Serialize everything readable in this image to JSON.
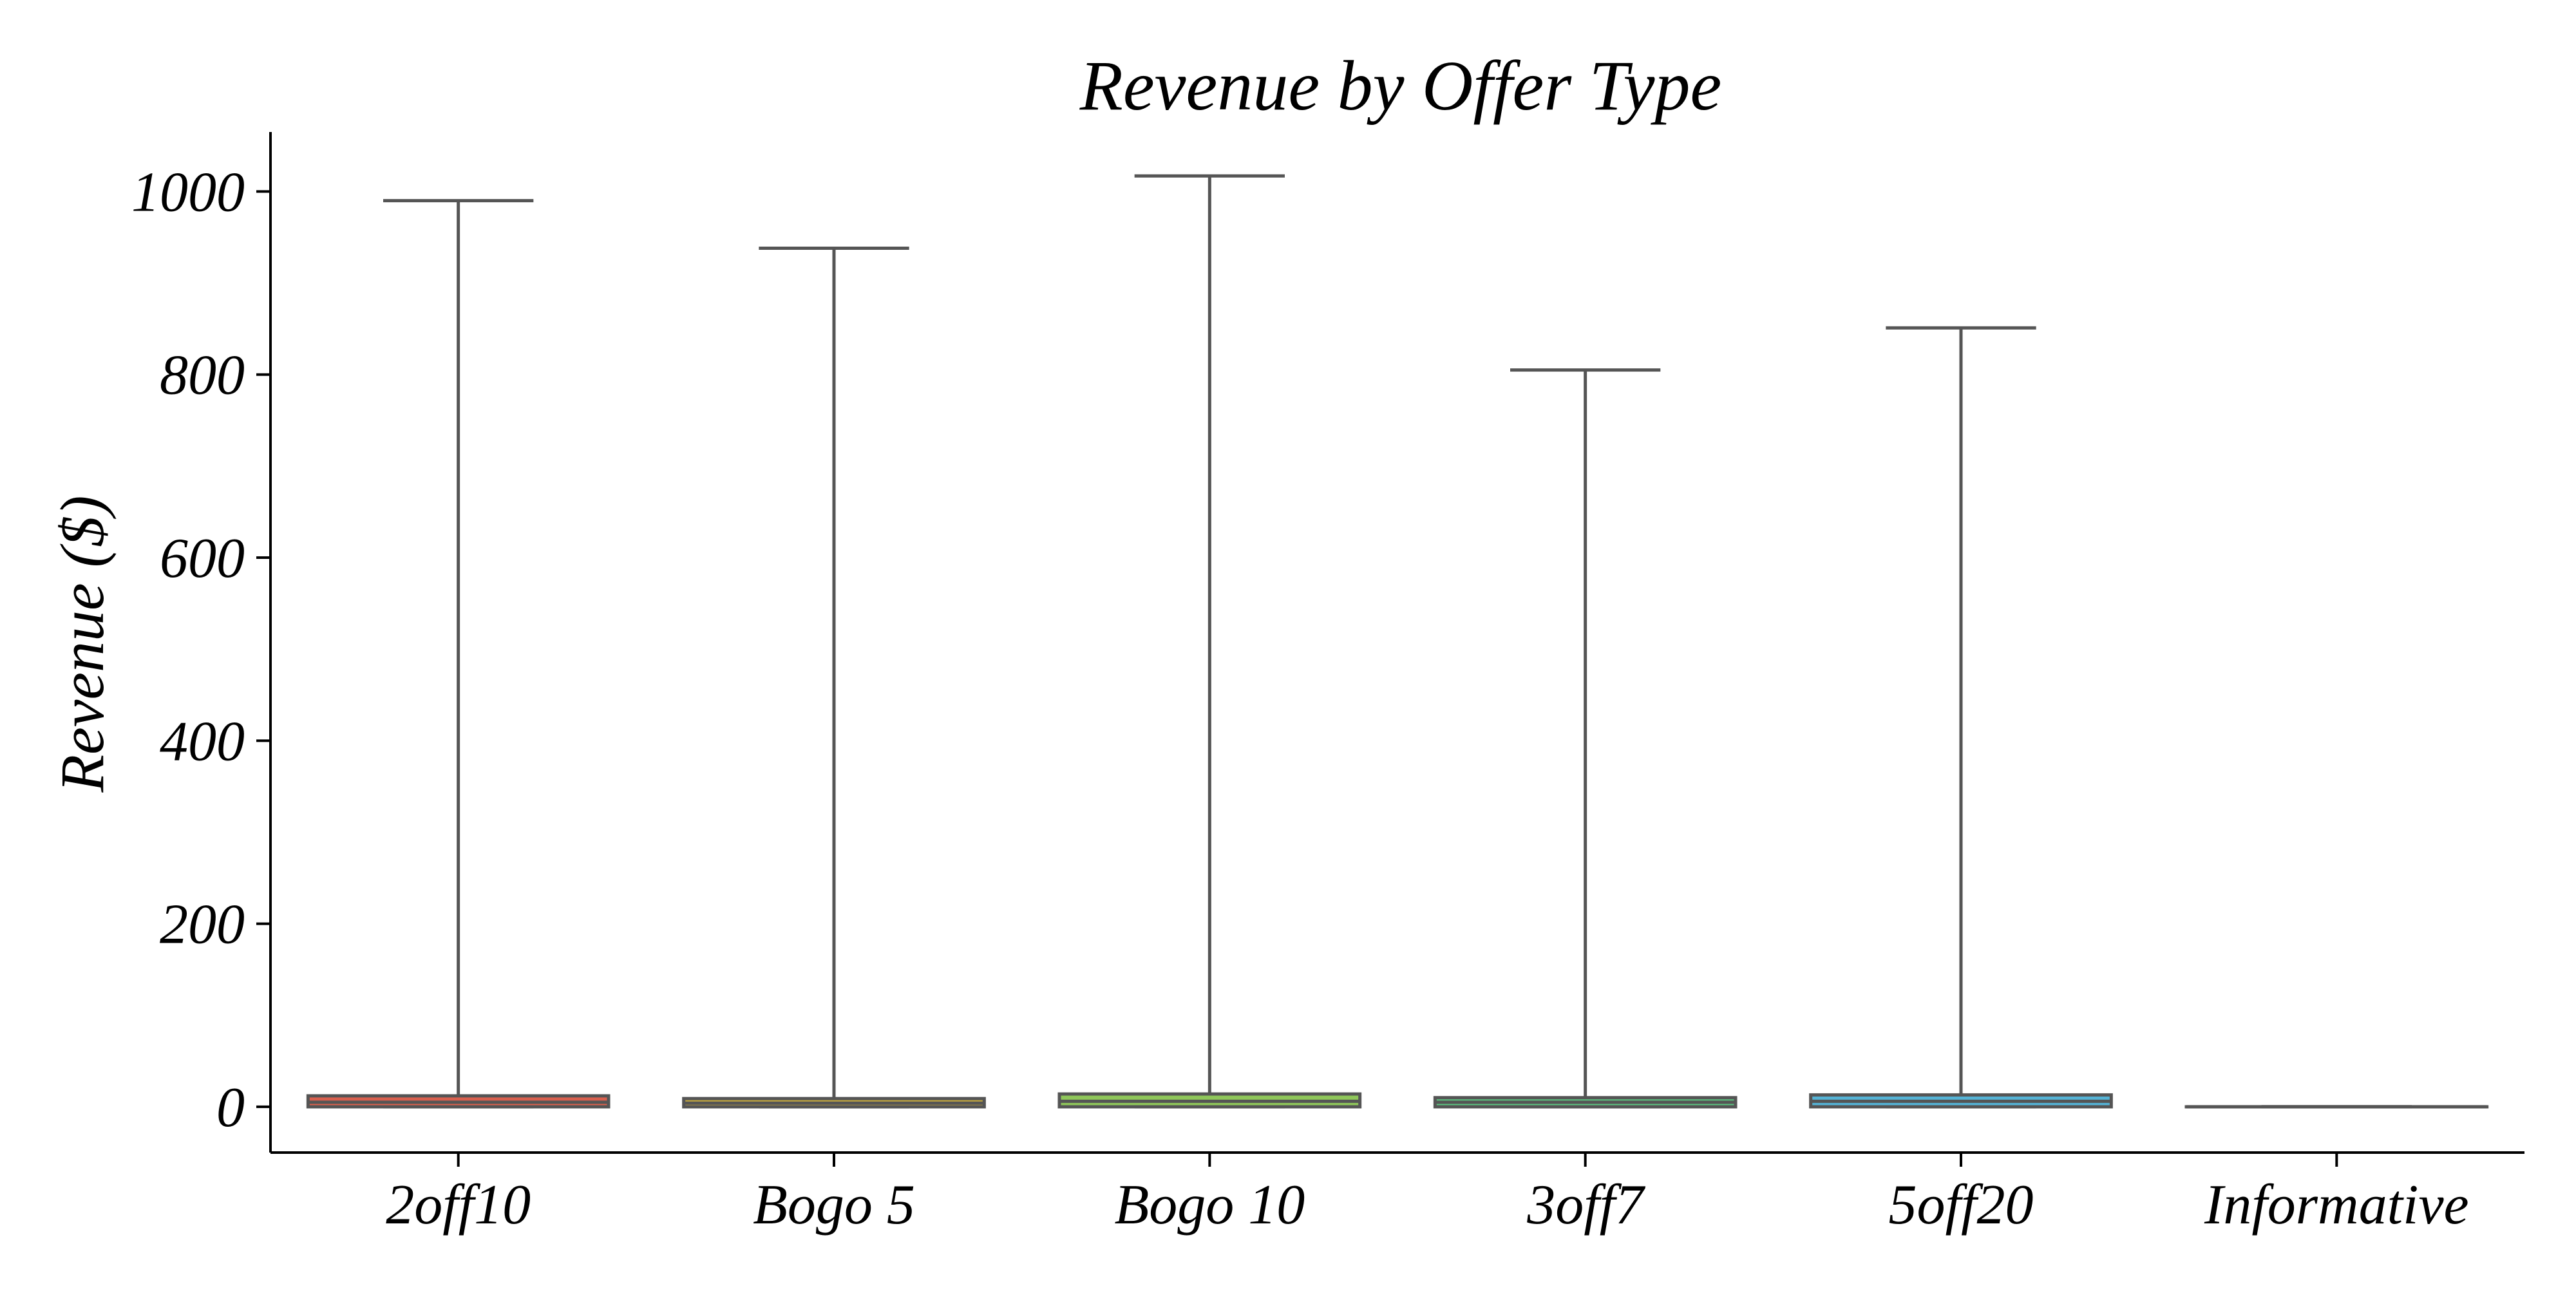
{
  "chart_data": {
    "type": "box",
    "title": "Revenue by Offer Type",
    "xlabel": "",
    "ylabel": "Revenue ($)",
    "ylim": [
      -50,
      1065
    ],
    "yticks": [
      0,
      200,
      400,
      600,
      800,
      1000
    ],
    "ytick_labels": [
      "0",
      "200",
      "400",
      "600",
      "800",
      "1000"
    ],
    "grid": false,
    "categories": [
      "2off10",
      "Bogo 5",
      "Bogo 10",
      "3off7",
      "5off20",
      "Informative"
    ],
    "boxes": [
      {
        "category": "2off10",
        "whisker_low": 0,
        "q1": 0,
        "median": 5,
        "q3": 12,
        "whisker_high": 990,
        "color": "#d9604e"
      },
      {
        "category": "Bogo 5",
        "whisker_low": 0,
        "q1": 0,
        "median": 4,
        "q3": 9,
        "whisker_high": 938,
        "color": "#c5a83e"
      },
      {
        "category": "Bogo 10",
        "whisker_low": 0,
        "q1": 0,
        "median": 6,
        "q3": 14,
        "whisker_high": 1017,
        "color": "#8fc75a"
      },
      {
        "category": "3off7",
        "whisker_low": 0,
        "q1": 0,
        "median": 5,
        "q3": 10,
        "whisker_high": 805,
        "color": "#5bc27f"
      },
      {
        "category": "5off20",
        "whisker_low": 0,
        "q1": 0,
        "median": 6,
        "q3": 13,
        "whisker_high": 851,
        "color": "#54b3d6"
      },
      {
        "category": "Informative",
        "whisker_low": 0,
        "q1": 0,
        "median": 0,
        "q3": 0,
        "whisker_high": 0,
        "color": "#7f7fbf"
      }
    ],
    "colors": {
      "axis": "#000000",
      "whisker": "#555555",
      "box_edge": "#555555"
    }
  }
}
